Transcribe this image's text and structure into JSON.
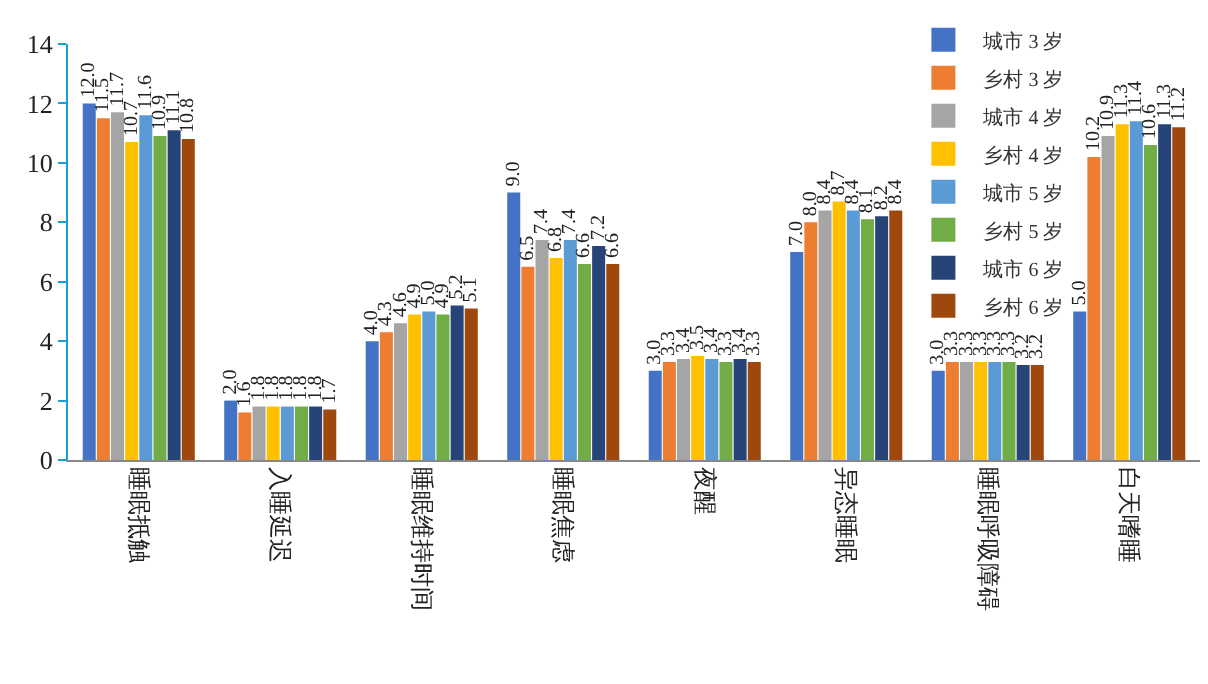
{
  "chart_data": {
    "type": "bar",
    "categories": [
      "睡眠抵触",
      "入睡延迟",
      "睡眠维持时间",
      "睡眠焦虑",
      "夜醒",
      "异态睡眠",
      "睡眠呼吸障碍",
      "白天嗜睡"
    ],
    "series": [
      {
        "name": "城市 3 岁",
        "color": "#4472c4",
        "values": [
          12.0,
          2.0,
          4.0,
          9.0,
          3.0,
          7.0,
          3.0,
          5.0
        ],
        "value_labels": [
          "12.0",
          "2.0",
          "4.0",
          "9.0",
          "3.0",
          "7.0",
          "3.0",
          "5.0"
        ]
      },
      {
        "name": "乡村 3 岁",
        "color": "#ed7d31",
        "values": [
          11.5,
          1.6,
          4.3,
          6.5,
          3.3,
          8.0,
          3.3,
          10.2
        ],
        "value_labels": [
          "11.5",
          "1.6",
          "4.3",
          "6.5",
          "3.3",
          "8.0",
          "3.3",
          "10.2"
        ]
      },
      {
        "name": "城市 4 岁",
        "color": "#a5a5a5",
        "values": [
          11.7,
          1.8,
          4.6,
          7.4,
          3.4,
          8.4,
          3.3,
          10.9
        ],
        "value_labels": [
          "11.7",
          "1.8",
          "4.6",
          "7.4",
          "3.4",
          "8.4",
          "3.3",
          "10.9"
        ]
      },
      {
        "name": "乡村 4 岁",
        "color": "#ffc000",
        "values": [
          10.7,
          1.8,
          4.9,
          6.8,
          3.5,
          8.7,
          3.3,
          11.3
        ],
        "value_labels": [
          "10.7",
          "1.8",
          "4.9",
          "6.8",
          "3.5",
          "8.7",
          "3.3",
          "11.3"
        ]
      },
      {
        "name": "城市 5 岁",
        "color": "#5b9bd5",
        "values": [
          11.6,
          1.8,
          5.0,
          7.4,
          3.4,
          8.4,
          3.3,
          11.4
        ],
        "value_labels": [
          "11.6",
          "1.8",
          "5.0",
          "7.4",
          "3.4",
          "8.4",
          "3.3",
          "11.4"
        ]
      },
      {
        "name": "乡村 5 岁",
        "color": "#70ad47",
        "values": [
          10.9,
          1.8,
          4.9,
          6.6,
          3.3,
          8.1,
          3.3,
          10.6
        ],
        "value_labels": [
          "10.9",
          "1.8",
          "4.9",
          "6.6",
          "3.3",
          "8.1",
          "3.3",
          "10.6"
        ]
      },
      {
        "name": "城市 6 岁",
        "color": "#264478",
        "values": [
          11.1,
          1.8,
          5.2,
          7.2,
          3.4,
          8.2,
          3.2,
          11.3
        ],
        "value_labels": [
          "11.1",
          "1.8",
          "5.2",
          "7.2",
          "3.4",
          "8.2",
          "3.2",
          "11.3"
        ]
      },
      {
        "name": "乡村 6 岁",
        "color": "#9e480e",
        "values": [
          10.8,
          1.7,
          5.1,
          6.6,
          3.3,
          8.4,
          3.2,
          11.2
        ],
        "value_labels": [
          "10.8",
          "1.7",
          "5.1",
          "6.6",
          "3.3",
          "8.4",
          "3.2",
          "11.2"
        ]
      }
    ],
    "ylim": [
      0,
      14
    ],
    "yticks": [
      0,
      2,
      4,
      6,
      8,
      10,
      12,
      14
    ],
    "grid": false,
    "legend": "top right"
  }
}
